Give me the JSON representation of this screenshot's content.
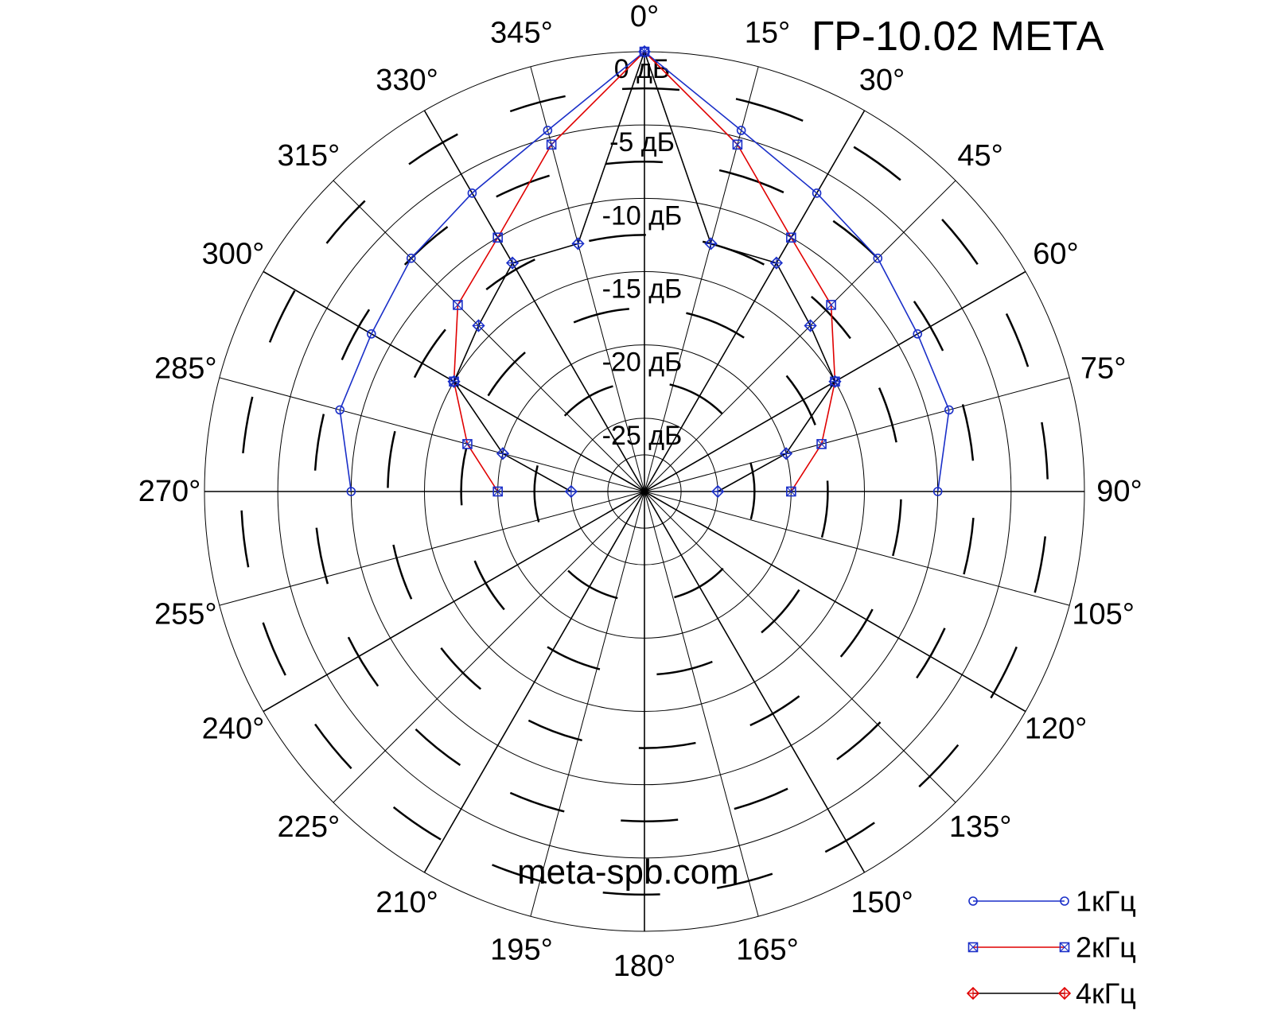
{
  "chart_data": {
    "type": "polar-line",
    "title": "ГР-10.02 МЕТА",
    "watermark": "meta-spb.com",
    "angle_unit": "°",
    "radial_unit": "дБ",
    "radial_range": [
      -30,
      0
    ],
    "radial_grid_db": [
      0,
      -5,
      -10,
      -15,
      -20,
      -25
    ],
    "radial_labels": [
      "0 дБ",
      "-5 дБ",
      "-10 дБ",
      "-15 дБ",
      "-20 дБ",
      "-25 дБ"
    ],
    "angle_ticks": [
      0,
      15,
      30,
      45,
      60,
      75,
      90,
      105,
      120,
      135,
      150,
      165,
      180,
      195,
      210,
      225,
      240,
      255,
      270,
      285,
      300,
      315,
      330,
      345
    ],
    "angle_labels": [
      "0°",
      "15°",
      "30°",
      "45°",
      "60°",
      "75°",
      "90°",
      "105°",
      "120°",
      "135°",
      "150°",
      "165°",
      "180°",
      "195°",
      "210°",
      "225°",
      "240°",
      "255°",
      "270°",
      "285°",
      "300°",
      "315°",
      "330°",
      "345°"
    ],
    "legend_position": "bottom-right",
    "series": [
      {
        "name": "1кГц",
        "color": "#1a2fc8",
        "marker": "circle",
        "marker_color": "#1a2fc8",
        "angles": [
          270,
          285,
          300,
          315,
          330,
          345,
          0,
          15,
          30,
          45,
          60,
          75,
          90
        ],
        "values": [
          -10,
          -8.5,
          -8.5,
          -7.5,
          -6.5,
          -4.5,
          0,
          -4.5,
          -6.5,
          -7.5,
          -8.5,
          -8.5,
          -10
        ]
      },
      {
        "name": "2кГц",
        "color": "#e00000",
        "marker": "square-x",
        "marker_color": "#1a2fc8",
        "angles": [
          270,
          285,
          300,
          315,
          330,
          345,
          0,
          15,
          30,
          45,
          60,
          75,
          90
        ],
        "values": [
          -20,
          -17.5,
          -15,
          -12,
          -10,
          -5.5,
          0,
          -5.5,
          -10,
          -12,
          -15,
          -17.5,
          -20
        ]
      },
      {
        "name": "4кГц",
        "color": "#000000",
        "marker": "diamond-plus",
        "marker_color": "#1a2fc8",
        "legend_marker_color": "#e00000",
        "angles": [
          270,
          285,
          300,
          315,
          330,
          345,
          0,
          15,
          30,
          45,
          60,
          75,
          90
        ],
        "values": [
          -25,
          -20,
          -15,
          -14,
          -12,
          -12.5,
          0,
          -12.5,
          -12,
          -14,
          -15,
          -20,
          -25
        ]
      }
    ]
  }
}
